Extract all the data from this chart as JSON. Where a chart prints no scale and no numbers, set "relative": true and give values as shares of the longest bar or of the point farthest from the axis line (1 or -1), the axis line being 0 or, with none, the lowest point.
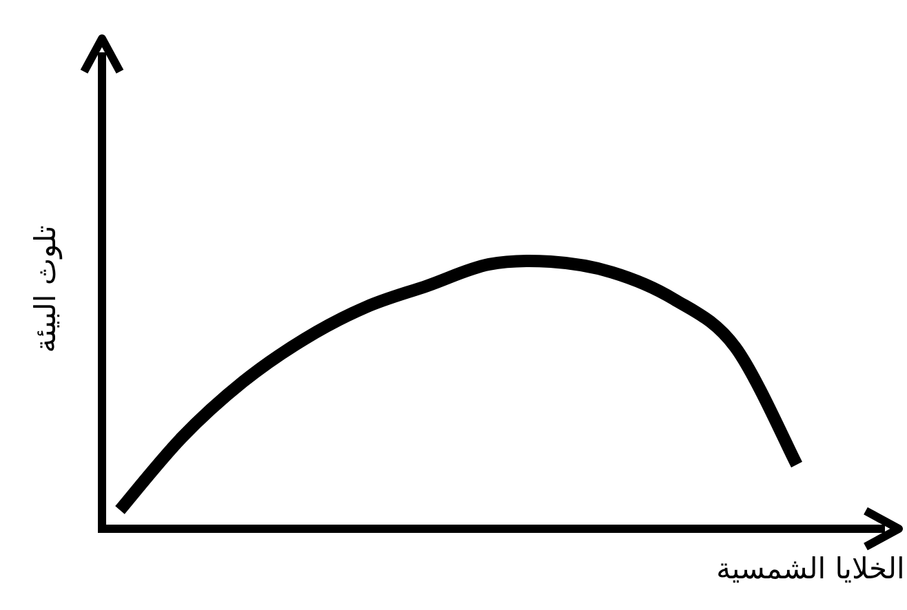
{
  "chart_data": {
    "type": "line",
    "relative": true,
    "xlabel": "الخلايا الشمسية",
    "ylabel": "تلوث البيئة",
    "categories": [
      null,
      null,
      null,
      null,
      null,
      null,
      null,
      null,
      null,
      null,
      null,
      null
    ],
    "series": [
      {
        "color": "#000000",
        "values": [
          0.07,
          0.34,
          0.55,
          0.71,
          0.83,
          0.91,
          0.99,
          1.0,
          0.96,
          0.86,
          0.68,
          0.24
        ]
      }
    ],
    "grid": false,
    "marker": "none",
    "line_style": "solid"
  }
}
